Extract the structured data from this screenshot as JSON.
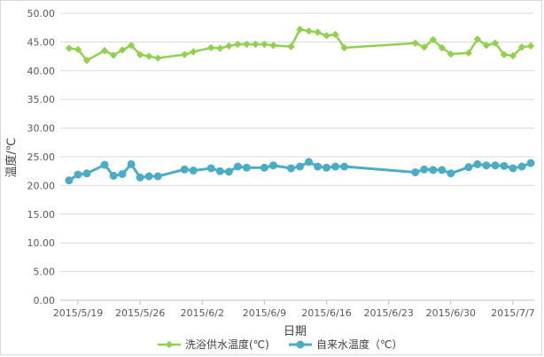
{
  "chart_data": {
    "type": "line",
    "xlabel": "日期",
    "ylabel": "温度/℃",
    "ylim": [
      0,
      50
    ],
    "yticks": [
      "0.00",
      "5.00",
      "10.00",
      "15.00",
      "20.00",
      "25.00",
      "30.00",
      "35.00",
      "40.00",
      "45.00",
      "50.00"
    ],
    "xticks": [
      {
        "label": "2015/5/19",
        "date": "2015-05-19"
      },
      {
        "label": "2015/5/26",
        "date": "2015-05-26"
      },
      {
        "label": "2015/6/2",
        "date": "2015-06-02"
      },
      {
        "label": "2015/6/9",
        "date": "2015-06-09"
      },
      {
        "label": "2015/6/16",
        "date": "2015-06-16"
      },
      {
        "label": "2015/6/23",
        "date": "2015-06-23"
      },
      {
        "label": "2015/6/30",
        "date": "2015-06-30"
      },
      {
        "label": "2015/7/7",
        "date": "2015-07-07"
      }
    ],
    "x_range": [
      "2015-05-18",
      "2015-07-08"
    ],
    "grid": "horizontal",
    "legend": "bottom",
    "series": [
      {
        "name": "洗浴供水温度(℃)",
        "color": "#92d050",
        "marker": "diamond",
        "points": [
          [
            "2015-05-18",
            43.9
          ],
          [
            "2015-05-19",
            43.7
          ],
          [
            "2015-05-20",
            41.8
          ],
          [
            "2015-05-22",
            43.5
          ],
          [
            "2015-05-23",
            42.7
          ],
          [
            "2015-05-24",
            43.6
          ],
          [
            "2015-05-25",
            44.4
          ],
          [
            "2015-05-26",
            42.8
          ],
          [
            "2015-05-27",
            42.5
          ],
          [
            "2015-05-28",
            42.2
          ],
          [
            "2015-05-31",
            42.8
          ],
          [
            "2015-06-01",
            43.3
          ],
          [
            "2015-06-03",
            44.0
          ],
          [
            "2015-06-04",
            43.9
          ],
          [
            "2015-06-05",
            44.3
          ],
          [
            "2015-06-06",
            44.6
          ],
          [
            "2015-06-07",
            44.6
          ],
          [
            "2015-06-08",
            44.6
          ],
          [
            "2015-06-09",
            44.6
          ],
          [
            "2015-06-10",
            44.4
          ],
          [
            "2015-06-12",
            44.2
          ],
          [
            "2015-06-13",
            47.2
          ],
          [
            "2015-06-14",
            46.9
          ],
          [
            "2015-06-15",
            46.7
          ],
          [
            "2015-06-16",
            46.1
          ],
          [
            "2015-06-17",
            46.3
          ],
          [
            "2015-06-18",
            44.0
          ],
          [
            "2015-06-26",
            44.8
          ],
          [
            "2015-06-27",
            44.1
          ],
          [
            "2015-06-28",
            45.4
          ],
          [
            "2015-06-29",
            44.0
          ],
          [
            "2015-06-30",
            42.9
          ],
          [
            "2015-07-02",
            43.1
          ],
          [
            "2015-07-03",
            45.5
          ],
          [
            "2015-07-04",
            44.4
          ],
          [
            "2015-07-05",
            44.8
          ],
          [
            "2015-07-06",
            42.8
          ],
          [
            "2015-07-07",
            42.6
          ],
          [
            "2015-07-08",
            44.1
          ],
          [
            "2015-07-09",
            44.3
          ]
        ]
      },
      {
        "name": "自来水温度（℃）",
        "color": "#4bacc6",
        "marker": "circle",
        "points": [
          [
            "2015-05-18",
            20.9
          ],
          [
            "2015-05-19",
            21.9
          ],
          [
            "2015-05-20",
            22.1
          ],
          [
            "2015-05-22",
            23.6
          ],
          [
            "2015-05-23",
            21.7
          ],
          [
            "2015-05-24",
            22.0
          ],
          [
            "2015-05-25",
            23.7
          ],
          [
            "2015-05-26",
            21.4
          ],
          [
            "2015-05-27",
            21.6
          ],
          [
            "2015-05-28",
            21.6
          ],
          [
            "2015-05-31",
            22.8
          ],
          [
            "2015-06-01",
            22.6
          ],
          [
            "2015-06-03",
            23.0
          ],
          [
            "2015-06-04",
            22.5
          ],
          [
            "2015-06-05",
            22.4
          ],
          [
            "2015-06-06",
            23.3
          ],
          [
            "2015-06-07",
            23.1
          ],
          [
            "2015-06-09",
            23.1
          ],
          [
            "2015-06-10",
            23.5
          ],
          [
            "2015-06-12",
            23.0
          ],
          [
            "2015-06-13",
            23.3
          ],
          [
            "2015-06-14",
            24.1
          ],
          [
            "2015-06-15",
            23.3
          ],
          [
            "2015-06-16",
            23.1
          ],
          [
            "2015-06-17",
            23.3
          ],
          [
            "2015-06-18",
            23.3
          ],
          [
            "2015-06-26",
            22.3
          ],
          [
            "2015-06-27",
            22.8
          ],
          [
            "2015-06-28",
            22.7
          ],
          [
            "2015-06-29",
            22.7
          ],
          [
            "2015-06-30",
            22.1
          ],
          [
            "2015-07-02",
            23.2
          ],
          [
            "2015-07-03",
            23.7
          ],
          [
            "2015-07-04",
            23.5
          ],
          [
            "2015-07-05",
            23.5
          ],
          [
            "2015-07-06",
            23.4
          ],
          [
            "2015-07-07",
            23.0
          ],
          [
            "2015-07-08",
            23.3
          ],
          [
            "2015-07-09",
            23.9
          ]
        ]
      }
    ]
  }
}
